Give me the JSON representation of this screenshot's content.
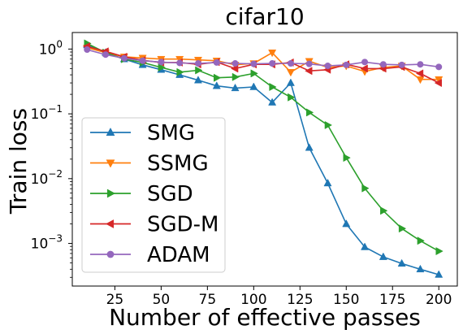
{
  "chart_data": {
    "type": "line",
    "title": "cifar10",
    "xlabel": "Number of effective passes",
    "ylabel": "Train loss",
    "yscale": "log",
    "xlim": [
      2,
      210
    ],
    "ylim": [
      0.00022,
      1.8
    ],
    "xticks": [
      25,
      50,
      75,
      100,
      125,
      150,
      175,
      200
    ],
    "yticks": [
      {
        "value": 1,
        "label": "10^0"
      },
      {
        "value": 0.1,
        "label": "10^-1"
      },
      {
        "value": 0.01,
        "label": "10^-2"
      },
      {
        "value": 0.001,
        "label": "10^-3"
      }
    ],
    "grid": false,
    "legend_position": "center-left",
    "x": [
      10,
      20,
      30,
      40,
      50,
      60,
      70,
      80,
      90,
      100,
      110,
      120,
      130,
      140,
      150,
      160,
      170,
      180,
      190,
      200
    ],
    "series": [
      {
        "name": "SMG",
        "color": "#1f77b4",
        "marker": "triangle-up",
        "values": [
          1.15,
          0.88,
          0.7,
          0.57,
          0.48,
          0.4,
          0.33,
          0.27,
          0.25,
          0.26,
          0.15,
          0.3,
          0.03,
          0.0085,
          0.002,
          0.00088,
          0.00062,
          0.00049,
          0.0004,
          0.00033
        ]
      },
      {
        "name": "SSMG",
        "color": "#ff7f0e",
        "marker": "triangle-down",
        "values": [
          1.05,
          0.88,
          0.76,
          0.73,
          0.7,
          0.7,
          0.68,
          0.66,
          0.57,
          0.6,
          0.88,
          0.44,
          0.65,
          0.52,
          0.55,
          0.45,
          0.52,
          0.55,
          0.34,
          0.34
        ]
      },
      {
        "name": "SGD",
        "color": "#2ca02c",
        "marker": "triangle-right",
        "values": [
          1.22,
          0.88,
          0.7,
          0.62,
          0.52,
          0.44,
          0.47,
          0.36,
          0.37,
          0.42,
          0.26,
          0.18,
          0.105,
          0.067,
          0.021,
          0.0071,
          0.0032,
          0.0017,
          0.0011,
          0.00076
        ]
      },
      {
        "name": "SGD-M",
        "color": "#d62728",
        "marker": "triangle-left",
        "values": [
          1.1,
          0.92,
          0.76,
          0.67,
          0.62,
          0.62,
          0.58,
          0.63,
          0.5,
          0.58,
          0.58,
          0.62,
          0.46,
          0.48,
          0.58,
          0.5,
          0.5,
          0.53,
          0.42,
          0.3
        ]
      },
      {
        "name": "ADAM",
        "color": "#9467bd",
        "marker": "circle",
        "values": [
          0.98,
          0.82,
          0.72,
          0.66,
          0.63,
          0.61,
          0.6,
          0.62,
          0.6,
          0.59,
          0.6,
          0.6,
          0.59,
          0.55,
          0.57,
          0.63,
          0.58,
          0.57,
          0.58,
          0.53
        ]
      }
    ]
  }
}
